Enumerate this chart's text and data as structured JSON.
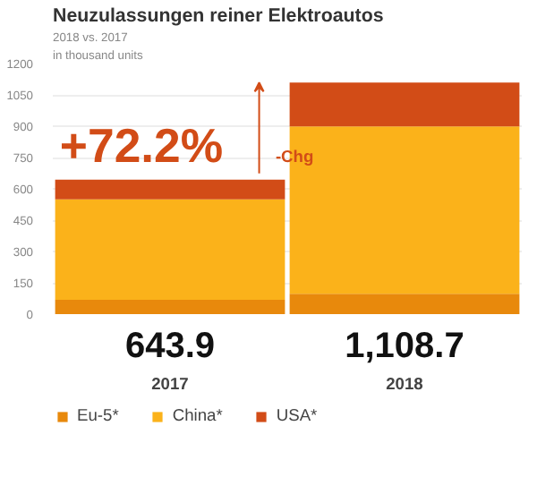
{
  "chart_data": {
    "type": "bar",
    "stacked": true,
    "title": "Neuzulassungen reiner Elektroautos",
    "subtitle": "2018 vs. 2017",
    "ylabel": "in thousand units",
    "categories": [
      "2017",
      "2018"
    ],
    "series": [
      {
        "name": "Eu-5*",
        "color": "#e8890c",
        "values": [
          69,
          97
        ]
      },
      {
        "name": "China*",
        "color": "#fbb21a",
        "values": [
          480.9,
          801.7
        ]
      },
      {
        "name": "USA*",
        "color": "#d24c17",
        "values": [
          94,
          210
        ]
      }
    ],
    "totals": [
      "643.9",
      "1,108.7"
    ],
    "annotations": [
      "+72.2%",
      "-Chg"
    ],
    "ylim": [
      0,
      1200
    ],
    "yticks": [
      0,
      150,
      300,
      450,
      600,
      750,
      900,
      1050,
      1200
    ],
    "grid": "y",
    "legend": "bottom"
  }
}
